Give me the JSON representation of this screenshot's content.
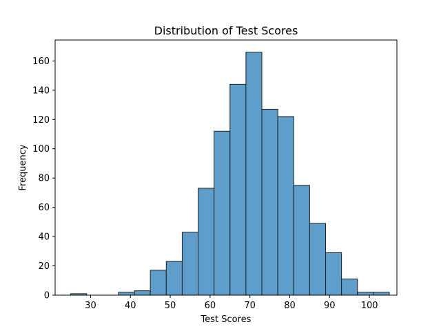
{
  "chart_data": {
    "type": "bar",
    "title": "Distribution of Test Scores",
    "xlabel": "Test Scores",
    "ylabel": "Frequency",
    "xlim": [
      21.1,
      106.9
    ],
    "ylim": [
      0,
      174.3
    ],
    "xticks": [
      30,
      40,
      50,
      60,
      70,
      80,
      90,
      100
    ],
    "yticks": [
      0,
      20,
      40,
      60,
      80,
      100,
      120,
      140,
      160
    ],
    "bin_edges": [
      25,
      29,
      33,
      37,
      41,
      45,
      49,
      53,
      57,
      61,
      65,
      69,
      73,
      77,
      81,
      85,
      89,
      93,
      97,
      101,
      105
    ],
    "values": [
      1,
      0,
      0,
      2,
      3,
      17,
      23,
      43,
      73,
      112,
      144,
      166,
      127,
      122,
      75,
      49,
      29,
      11,
      2,
      2
    ],
    "bar_color": "#5f9ecb",
    "edge_color": "#1f1f1f",
    "grid": false
  }
}
